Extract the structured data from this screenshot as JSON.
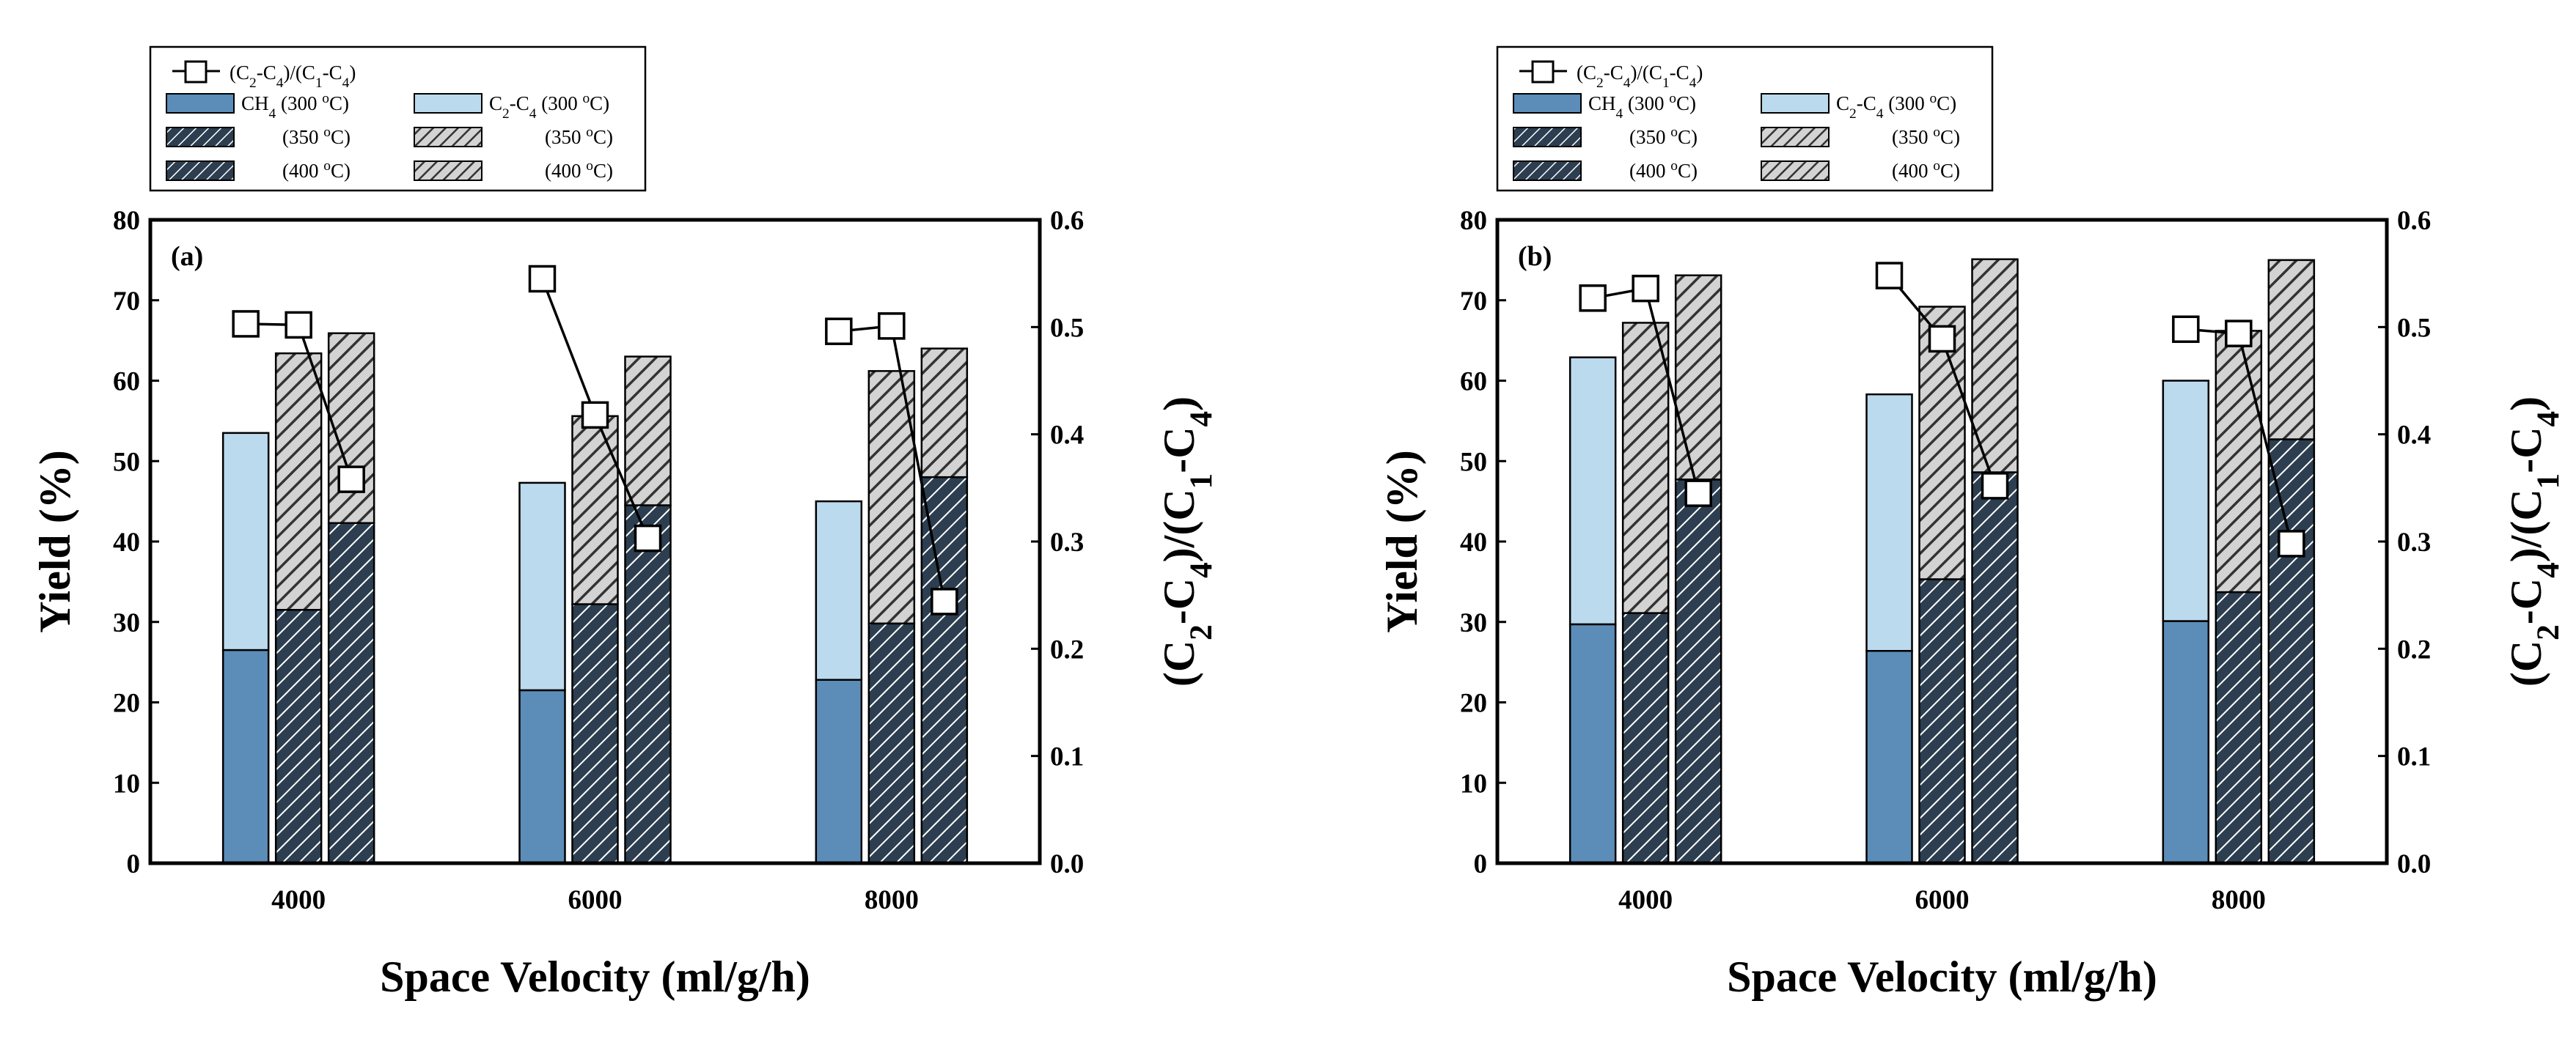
{
  "colors": {
    "ch4_fill": "#5b8db8",
    "c2c4_fill": "#bcdaed",
    "hatch_dark_fill": "#2c3e50",
    "hatch_light_fill": "#d3d3d3",
    "hatch_light_stroke": "#333333",
    "hatch_dark_stroke": "#ffffff",
    "line": "#000000",
    "marker_fill": "#ffffff"
  },
  "legend": {
    "line_label": "(C2-C4)/(C1-C4)",
    "ch4_300": "CH4 (300 °C)",
    "ch4_350": "(350 °C)",
    "ch4_400": "(400 °C)",
    "c2c4_300": "C2-C4 (300 °C)",
    "c2c4_350": "(350 °C)",
    "c2c4_400": "(400 °C)"
  },
  "chart_data": [
    {
      "type": "bar",
      "panel_label": "(a)",
      "xlabel": "Space Velocity (ml/g/h)",
      "ylabel": "Yield (%)",
      "y2label": "(C2-C4)/(C1-C4)",
      "categories": [
        "4000",
        "6000",
        "8000"
      ],
      "ylim": [
        0,
        80
      ],
      "y2lim": [
        0.0,
        0.6
      ],
      "yticks": [
        "0",
        "10",
        "20",
        "30",
        "40",
        "50",
        "60",
        "70",
        "80"
      ],
      "y2ticks": [
        "0.0",
        "0.1",
        "0.2",
        "0.3",
        "0.4",
        "0.5",
        "0.6"
      ],
      "series": [
        {
          "temperature": "300 °C",
          "ch4": [
            26.5,
            21.5,
            22.8
          ],
          "total": [
            53.5,
            47.3,
            45.0
          ]
        },
        {
          "temperature": "350 °C",
          "ch4": [
            31.5,
            32.2,
            29.8
          ],
          "total": [
            63.4,
            55.6,
            61.2
          ]
        },
        {
          "temperature": "400 °C",
          "ch4": [
            42.3,
            44.5,
            48.0
          ],
          "total": [
            65.9,
            63.0,
            64.0
          ]
        }
      ],
      "ratio": {
        "name": "(C2-C4)/(C1-C4)",
        "values": [
          [
            0.503,
            0.502,
            0.358
          ],
          [
            0.545,
            0.418,
            0.303
          ],
          [
            0.496,
            0.501,
            0.244
          ]
        ]
      }
    },
    {
      "type": "bar",
      "panel_label": "(b)",
      "xlabel": "Space Velocity (ml/g/h)",
      "ylabel": "Yield (%)",
      "y2label": "(C2-C4)/(C1-C4)",
      "categories": [
        "4000",
        "6000",
        "8000"
      ],
      "ylim": [
        0,
        80
      ],
      "y2lim": [
        0.0,
        0.6
      ],
      "yticks": [
        "0",
        "10",
        "20",
        "30",
        "40",
        "50",
        "60",
        "70",
        "80"
      ],
      "y2ticks": [
        "0.0",
        "0.1",
        "0.2",
        "0.3",
        "0.4",
        "0.5",
        "0.6"
      ],
      "series": [
        {
          "temperature": "300 °C",
          "ch4": [
            29.7,
            26.4,
            30.1
          ],
          "total": [
            62.9,
            58.3,
            60.0
          ]
        },
        {
          "temperature": "350 °C",
          "ch4": [
            31.1,
            35.3,
            33.7
          ],
          "total": [
            67.2,
            69.2,
            66.2
          ]
        },
        {
          "temperature": "400 °C",
          "ch4": [
            47.7,
            48.6,
            52.7
          ],
          "total": [
            73.1,
            75.1,
            75.0
          ]
        }
      ],
      "ratio": {
        "name": "(C2-C4)/(C1-C4)",
        "values": [
          [
            0.527,
            0.536,
            0.345
          ],
          [
            0.548,
            0.489,
            0.352
          ],
          [
            0.498,
            0.494,
            0.298
          ]
        ]
      }
    }
  ]
}
